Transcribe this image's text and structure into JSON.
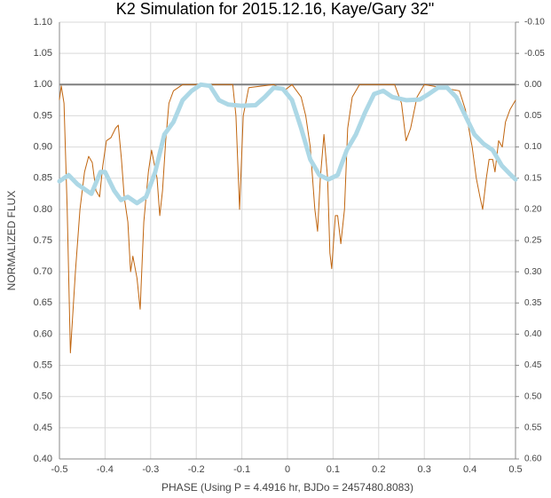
{
  "chart_data": {
    "type": "line",
    "title": "K2 Simulation for 2015.12.16, Kaye/Gary 32\"",
    "xlabel": "PHASE (Using P = 4.4916 hr, BJDo = 2457480.8083)",
    "ylabel": "NORMALIZED FLUX",
    "xlim": [
      -0.5,
      0.5
    ],
    "xticks": [
      -0.5,
      -0.4,
      -0.3,
      -0.2,
      -0.1,
      0,
      0.1,
      0.2,
      0.3,
      0.4,
      0.5
    ],
    "ylim": [
      0.4,
      1.1
    ],
    "yticks": [
      {
        "value": 0.4,
        "label": "0.40"
      },
      {
        "value": 0.45,
        "label": "0.45"
      },
      {
        "value": 0.5,
        "label": "0.50"
      },
      {
        "value": 0.55,
        "label": "0.55"
      },
      {
        "value": 0.6,
        "label": "0.60"
      },
      {
        "value": 0.65,
        "label": "0.65"
      },
      {
        "value": 0.7,
        "label": "0.70"
      },
      {
        "value": 0.75,
        "label": "0.75"
      },
      {
        "value": 0.8,
        "label": "0.80"
      },
      {
        "value": 0.85,
        "label": "0.85"
      },
      {
        "value": 0.9,
        "label": "0.90"
      },
      {
        "value": 0.95,
        "label": "0.95"
      },
      {
        "value": 1,
        "label": "1.00"
      },
      {
        "value": 1.05,
        "label": "1.05"
      },
      {
        "value": 1.1,
        "label": "1.10"
      }
    ],
    "y2lim": [
      0.6,
      -0.1
    ],
    "y2ticks": [
      {
        "value": 0.6,
        "label": "0.60"
      },
      {
        "value": 0.55,
        "label": "0.55"
      },
      {
        "value": 0.5,
        "label": "0.50"
      },
      {
        "value": 0.45,
        "label": "0.45"
      },
      {
        "value": 0.4,
        "label": "0.40"
      },
      {
        "value": 0.35,
        "label": "0.35"
      },
      {
        "value": 0.3,
        "label": "0.30"
      },
      {
        "value": 0.25,
        "label": "0.25"
      },
      {
        "value": 0.2,
        "label": "0.20"
      },
      {
        "value": 0.15,
        "label": "0.15"
      },
      {
        "value": 0.1,
        "label": "0.10"
      },
      {
        "value": 0.05,
        "label": "0.05"
      },
      {
        "value": 0,
        "label": "0.00"
      },
      {
        "value": -0.05,
        "label": "-0.05"
      },
      {
        "value": -0.1,
        "label": "-0.10"
      }
    ],
    "grid": true,
    "series": [
      {
        "color": "#c0650f",
        "width": 1,
        "x": [
          -0.5,
          -0.496,
          -0.49,
          -0.483,
          -0.476,
          -0.465,
          -0.455,
          -0.445,
          -0.436,
          -0.428,
          -0.42,
          -0.412,
          -0.405,
          -0.397,
          -0.387,
          -0.377,
          -0.371,
          -0.364,
          -0.358,
          -0.35,
          -0.344,
          -0.339,
          -0.33,
          -0.323,
          -0.315,
          -0.305,
          -0.298,
          -0.286,
          -0.28,
          -0.274,
          -0.267,
          -0.26,
          -0.25,
          -0.23,
          -0.12,
          -0.113,
          -0.105,
          -0.097,
          -0.085,
          -0.03,
          -0.008,
          0.01,
          0.03,
          0.04,
          0.05,
          0.06,
          0.066,
          0.072,
          0.08,
          0.088,
          0.093,
          0.097,
          0.105,
          0.11,
          0.117,
          0.125,
          0.132,
          0.142,
          0.158,
          0.235,
          0.25,
          0.26,
          0.27,
          0.284,
          0.3,
          0.377,
          0.39,
          0.405,
          0.414,
          0.422,
          0.428,
          0.436,
          0.442,
          0.45,
          0.455,
          0.463,
          0.471,
          0.478,
          0.488,
          0.5
        ],
        "values": [
          0.976,
          0.998,
          0.97,
          0.8,
          0.57,
          0.7,
          0.8,
          0.86,
          0.885,
          0.875,
          0.83,
          0.82,
          0.87,
          0.91,
          0.915,
          0.93,
          0.935,
          0.88,
          0.82,
          0.78,
          0.7,
          0.725,
          0.69,
          0.64,
          0.78,
          0.86,
          0.895,
          0.85,
          0.79,
          0.83,
          0.91,
          0.97,
          0.99,
          1.0,
          1.0,
          0.95,
          0.8,
          0.95,
          0.995,
          1.0,
          0.99,
          1.0,
          0.98,
          0.95,
          0.9,
          0.8,
          0.765,
          0.85,
          0.92,
          0.85,
          0.73,
          0.705,
          0.79,
          0.79,
          0.745,
          0.8,
          0.93,
          0.98,
          1.0,
          1.0,
          0.97,
          0.91,
          0.93,
          0.98,
          1.0,
          0.99,
          0.96,
          0.9,
          0.85,
          0.82,
          0.8,
          0.85,
          0.88,
          0.88,
          0.86,
          0.91,
          0.9,
          0.94,
          0.96,
          0.975
        ]
      },
      {
        "color": "#add8e6",
        "width": 5,
        "x": [
          -0.5,
          -0.48,
          -0.46,
          -0.44,
          -0.43,
          -0.41,
          -0.4,
          -0.38,
          -0.365,
          -0.35,
          -0.33,
          -0.31,
          -0.29,
          -0.27,
          -0.25,
          -0.23,
          -0.21,
          -0.19,
          -0.17,
          -0.15,
          -0.13,
          -0.1,
          -0.07,
          -0.05,
          -0.03,
          -0.01,
          0.01,
          0.03,
          0.05,
          0.07,
          0.09,
          0.11,
          0.13,
          0.15,
          0.17,
          0.19,
          0.21,
          0.23,
          0.26,
          0.29,
          0.31,
          0.33,
          0.35,
          0.37,
          0.39,
          0.41,
          0.43,
          0.45,
          0.47,
          0.49,
          0.5
        ],
        "values": [
          0.845,
          0.855,
          0.84,
          0.83,
          0.825,
          0.86,
          0.86,
          0.83,
          0.815,
          0.82,
          0.81,
          0.82,
          0.86,
          0.92,
          0.94,
          0.975,
          0.99,
          1.0,
          0.998,
          0.975,
          0.968,
          0.966,
          0.967,
          0.98,
          0.995,
          0.993,
          0.975,
          0.93,
          0.88,
          0.855,
          0.848,
          0.855,
          0.895,
          0.92,
          0.955,
          0.985,
          0.99,
          0.98,
          0.975,
          0.976,
          0.985,
          0.995,
          0.995,
          0.98,
          0.95,
          0.92,
          0.905,
          0.895,
          0.87,
          0.855,
          0.848
        ]
      }
    ]
  }
}
